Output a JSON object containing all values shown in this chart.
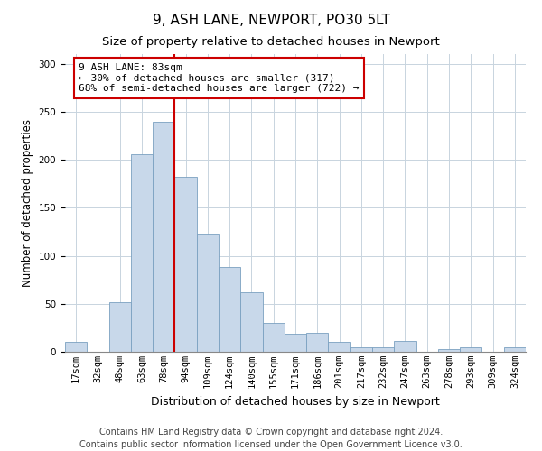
{
  "title": "9, ASH LANE, NEWPORT, PO30 5LT",
  "subtitle": "Size of property relative to detached houses in Newport",
  "xlabel": "Distribution of detached houses by size in Newport",
  "ylabel": "Number of detached properties",
  "bar_color": "#c8d8ea",
  "bar_edge_color": "#7aa0c0",
  "categories": [
    "17sqm",
    "32sqm",
    "48sqm",
    "63sqm",
    "78sqm",
    "94sqm",
    "109sqm",
    "124sqm",
    "140sqm",
    "155sqm",
    "171sqm",
    "186sqm",
    "201sqm",
    "217sqm",
    "232sqm",
    "247sqm",
    "263sqm",
    "278sqm",
    "293sqm",
    "309sqm",
    "324sqm"
  ],
  "values": [
    10,
    0,
    52,
    206,
    240,
    182,
    123,
    88,
    62,
    30,
    19,
    20,
    10,
    5,
    5,
    11,
    0,
    3,
    5,
    0,
    5
  ],
  "vline_index": 5,
  "vline_color": "#cc0000",
  "annotation_title": "9 ASH LANE: 83sqm",
  "annotation_line2": "← 30% of detached houses are smaller (317)",
  "annotation_line3": "68% of semi-detached houses are larger (722) →",
  "annotation_box_color": "#ffffff",
  "annotation_box_edge_color": "#cc0000",
  "ylim": [
    0,
    310
  ],
  "yticks": [
    0,
    50,
    100,
    150,
    200,
    250,
    300
  ],
  "footer_line1": "Contains HM Land Registry data © Crown copyright and database right 2024.",
  "footer_line2": "Contains public sector information licensed under the Open Government Licence v3.0.",
  "title_fontsize": 11,
  "subtitle_fontsize": 9.5,
  "xlabel_fontsize": 9,
  "ylabel_fontsize": 8.5,
  "tick_fontsize": 7.5,
  "annotation_fontsize": 8,
  "footer_fontsize": 7
}
